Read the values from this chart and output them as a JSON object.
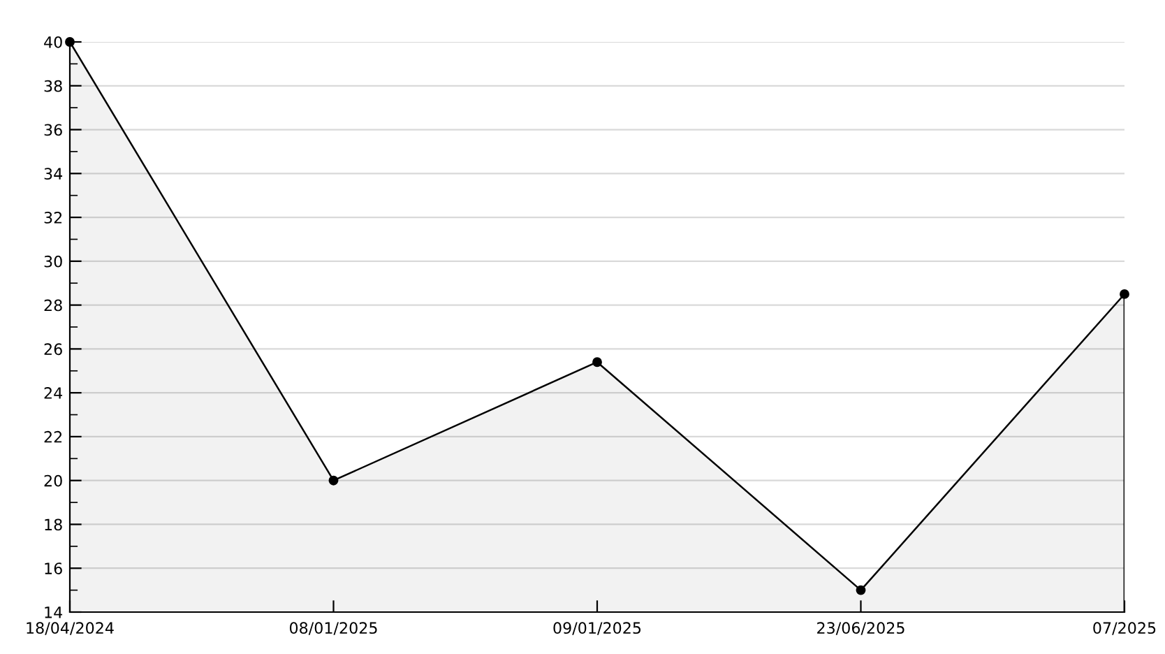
{
  "chart_data": {
    "type": "area",
    "categories": [
      "18/04/2024",
      "08/01/2025",
      "09/01/2025",
      "23/06/2025",
      "07/2025"
    ],
    "series": [
      {
        "color": "#000000",
        "values": [
          40,
          20,
          25.4,
          15,
          28.5
        ]
      }
    ],
    "ylim": [
      14,
      40
    ],
    "yticks": [
      14,
      16,
      18,
      20,
      22,
      24,
      26,
      28,
      30,
      32,
      34,
      36,
      38,
      40
    ],
    "grid": "y",
    "marker": "circle",
    "line_style": "solid"
  }
}
